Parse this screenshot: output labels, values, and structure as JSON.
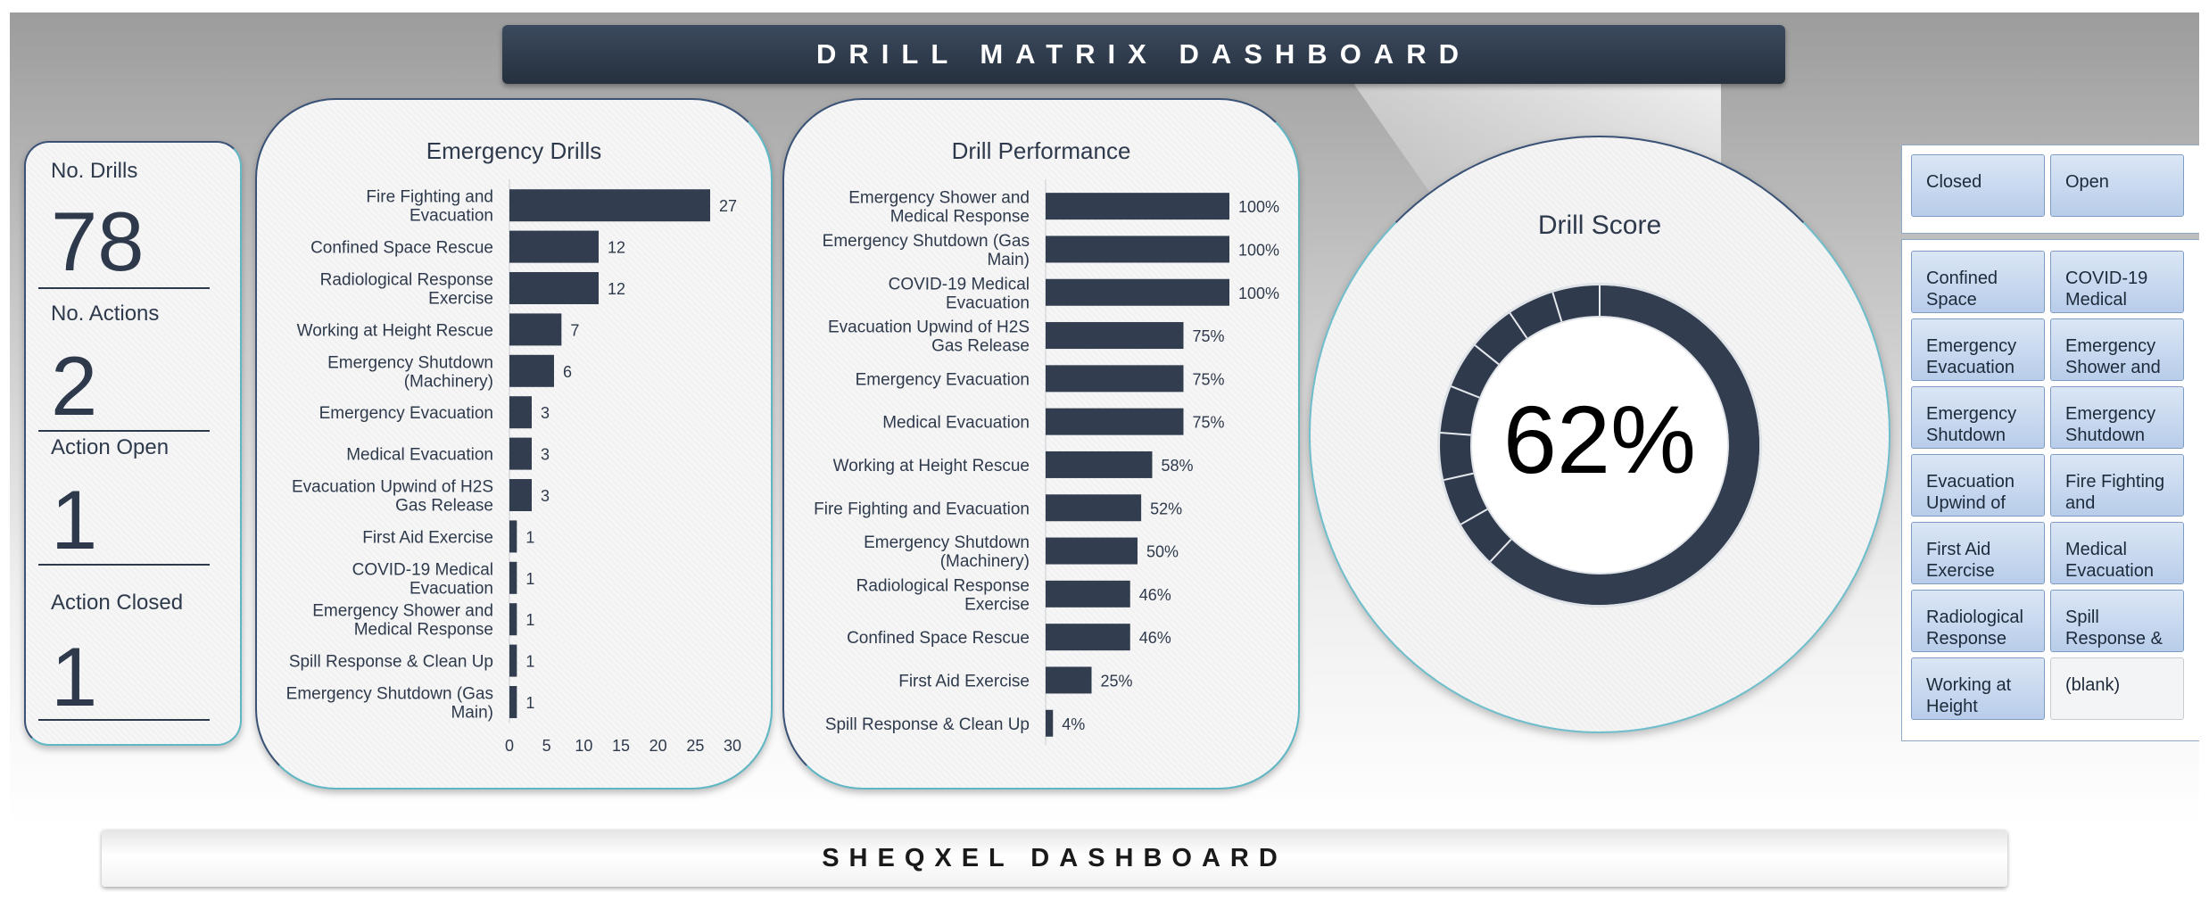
{
  "header": {
    "title": "DRILL MATRIX DASHBOARD"
  },
  "footer": {
    "title": "SHEQXEL DASHBOARD"
  },
  "kpis": [
    {
      "label": "No. Drills",
      "value": "78"
    },
    {
      "label": "No. Actions",
      "value": "2"
    },
    {
      "label": "Action Open",
      "value": "1"
    },
    {
      "label": "Action Closed",
      "value": "1"
    }
  ],
  "score": {
    "title": "Drill Score",
    "value_text": "62%",
    "value": 62
  },
  "colors": {
    "bar": "#323e4f",
    "accent": "#5fb7c4",
    "slicer": "#c7d7ef"
  },
  "slicers": {
    "status": [
      "Closed",
      "Open"
    ],
    "drills": [
      "Confined Space",
      "COVID-19 Medical",
      "Emergency Evacuation",
      "Emergency Shower and",
      "Emergency Shutdown",
      "Emergency Shutdown",
      "Evacuation Upwind of",
      "Fire Fighting and",
      "First Aid Exercise",
      "Medical Evacuation",
      "Radiological Response",
      "Spill Response &",
      "Working at Height",
      "(blank)"
    ]
  },
  "chart_data": [
    {
      "type": "bar",
      "orientation": "horizontal",
      "title": "Emergency Drills",
      "categories": [
        [
          "Fire Fighting and",
          "Evacuation"
        ],
        [
          "Confined Space Rescue"
        ],
        [
          "Radiological Response",
          "Exercise"
        ],
        [
          "Working at Height Rescue"
        ],
        [
          "Emergency Shutdown",
          "(Machinery)"
        ],
        [
          "Emergency Evacuation"
        ],
        [
          "Medical Evacuation"
        ],
        [
          "Evacuation Upwind of H2S",
          "Gas Release"
        ],
        [
          "First Aid Exercise"
        ],
        [
          "COVID-19 Medical",
          "Evacuation"
        ],
        [
          "Emergency Shower and",
          "Medical Response"
        ],
        [
          "Spill Response & Clean Up"
        ],
        [
          "Emergency Shutdown (Gas",
          "Main)"
        ]
      ],
      "values": [
        27,
        12,
        12,
        7,
        6,
        3,
        3,
        3,
        1,
        1,
        1,
        1,
        1
      ],
      "data_labels": [
        "27",
        "12",
        "12",
        "7",
        "6",
        "3",
        "3",
        "3",
        "1",
        "1",
        "1",
        "1",
        "1"
      ],
      "xlim": [
        0,
        30
      ],
      "xticks": [
        "0",
        "5",
        "10",
        "15",
        "20",
        "25",
        "30"
      ]
    },
    {
      "type": "bar",
      "orientation": "horizontal",
      "title": "Drill Performance",
      "categories": [
        [
          "Emergency Shower and",
          "Medical Response"
        ],
        [
          "Emergency Shutdown (Gas",
          "Main)"
        ],
        [
          "COVID-19 Medical",
          "Evacuation"
        ],
        [
          "Evacuation Upwind of H2S",
          "Gas Release"
        ],
        [
          "Emergency Evacuation"
        ],
        [
          "Medical Evacuation"
        ],
        [
          "Working at Height Rescue"
        ],
        [
          "Fire Fighting and Evacuation"
        ],
        [
          "Emergency Shutdown",
          "(Machinery)"
        ],
        [
          "Radiological Response",
          "Exercise"
        ],
        [
          "Confined Space Rescue"
        ],
        [
          "First Aid Exercise"
        ],
        [
          "Spill Response & Clean Up"
        ]
      ],
      "values": [
        100,
        100,
        100,
        75,
        75,
        75,
        58,
        52,
        50,
        46,
        46,
        25,
        4
      ],
      "data_labels": [
        "100%",
        "100%",
        "100%",
        "75%",
        "75%",
        "75%",
        "58%",
        "52%",
        "50%",
        "46%",
        "46%",
        "25%",
        "4%"
      ],
      "xlim": [
        0,
        100
      ]
    }
  ]
}
